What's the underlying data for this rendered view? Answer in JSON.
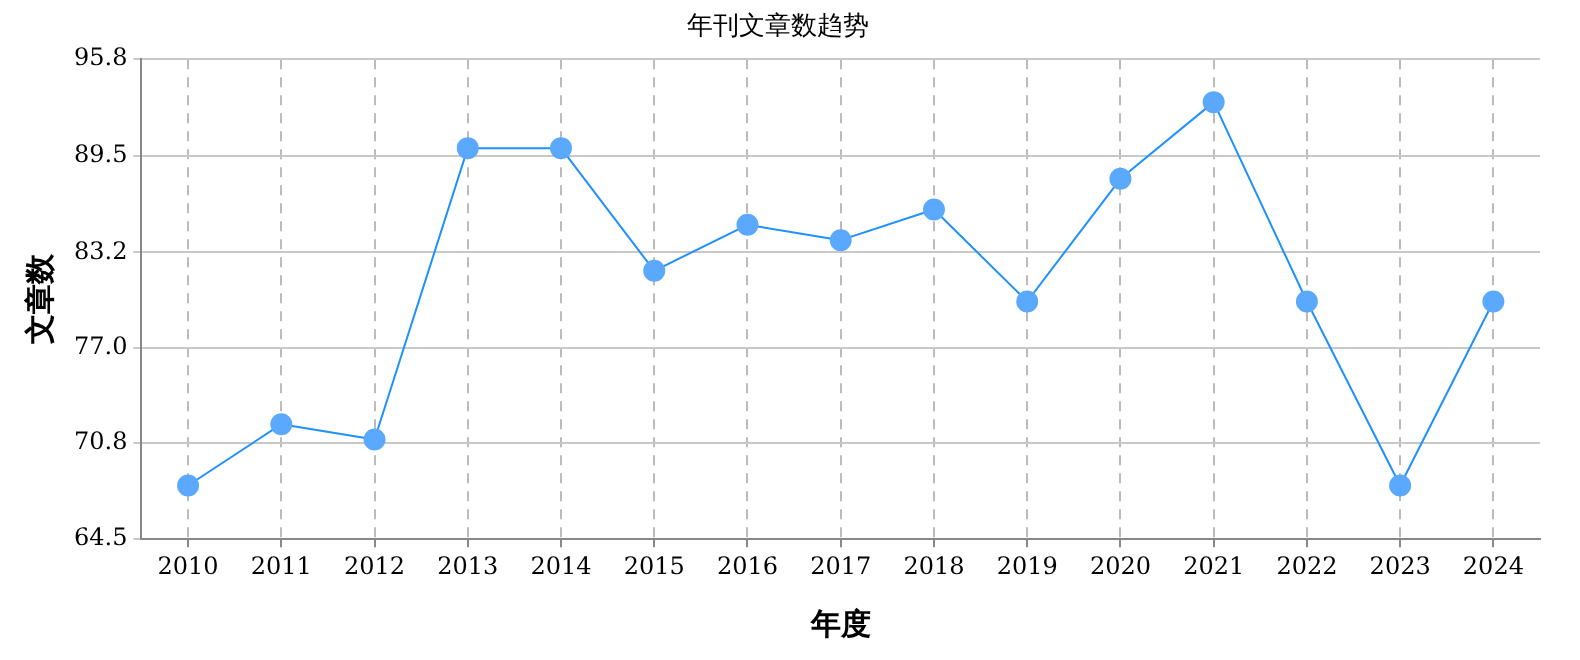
{
  "chart_data": {
    "type": "line",
    "title": "年刊文章数趋势",
    "xlabel": "年度",
    "ylabel": "文章数",
    "categories": [
      "2010",
      "2011",
      "2012",
      "2013",
      "2014",
      "2015",
      "2016",
      "2017",
      "2018",
      "2019",
      "2020",
      "2021",
      "2022",
      "2023",
      "2024"
    ],
    "series": [
      {
        "color": "#1e90ff",
        "values": [
          68,
          72,
          71,
          90,
          90,
          82,
          85,
          84,
          86,
          80,
          88,
          93,
          80,
          68,
          80
        ]
      }
    ],
    "ylim": [
      64.5,
      95.8
    ],
    "yticks": [
      64.5,
      70.8,
      {
        "value": 77,
        "label": "77.0"
      },
      83.2,
      89.5,
      95.8
    ],
    "grid": true,
    "marker": "circle",
    "line_style": "solid",
    "legend": false
  }
}
